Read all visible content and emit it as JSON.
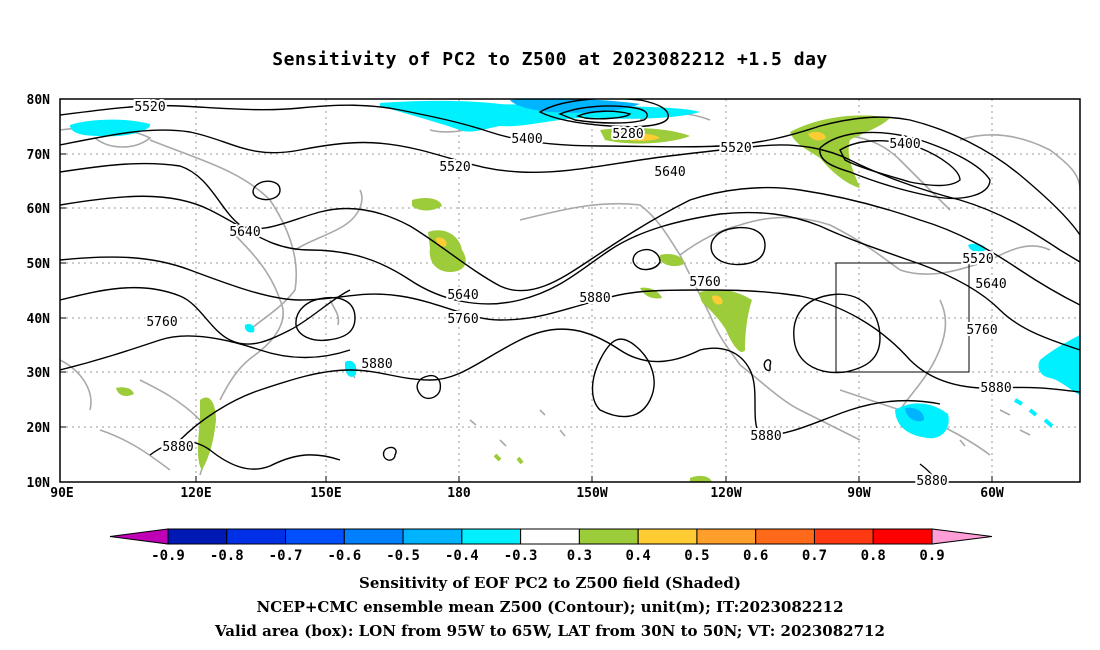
{
  "title": "Sensitivity of PC2 to Z500 at 2023082212 +1.5 day",
  "lat_labels": [
    "80N",
    "70N",
    "60N",
    "50N",
    "40N",
    "30N",
    "20N",
    "10N"
  ],
  "lon_labels": [
    "90E",
    "120E",
    "150E",
    "180",
    "150W",
    "120W",
    "90W",
    "60W"
  ],
  "contour_labels": [
    "5520",
    "5400",
    "5280",
    "5520",
    "5400",
    "5520",
    "5640",
    "5640",
    "5640",
    "5760",
    "5760",
    "5880",
    "5760",
    "5520",
    "5640",
    "5760",
    "5880",
    "5880",
    "5880",
    "5880",
    "5880"
  ],
  "colorbar": {
    "labels": [
      "-0.9",
      "-0.8",
      "-0.7",
      "-0.6",
      "-0.5",
      "-0.4",
      "-0.3",
      "0.3",
      "0.4",
      "0.5",
      "0.6",
      "0.7",
      "0.8",
      "0.9"
    ],
    "colors": [
      "#c000b4",
      "#0018b4",
      "#0030e6",
      "#0050ff",
      "#0080ff",
      "#00b4ff",
      "#00f0ff",
      "#ffffff",
      "#9ccc3a",
      "#ffcc33",
      "#ff9e2a",
      "#ff6a1a",
      "#ff3a12",
      "#ff0000",
      "#ff9ed6"
    ]
  },
  "captions": [
    "Sensitivity of EOF PC2 to Z500 field (Shaded)",
    "NCEP+CMC ensemble mean Z500 (Contour); unit(m); IT:2023082212",
    "Valid area (box): LON from 95W to 65W, LAT from 30N to 50N; VT: 2023082712"
  ]
}
